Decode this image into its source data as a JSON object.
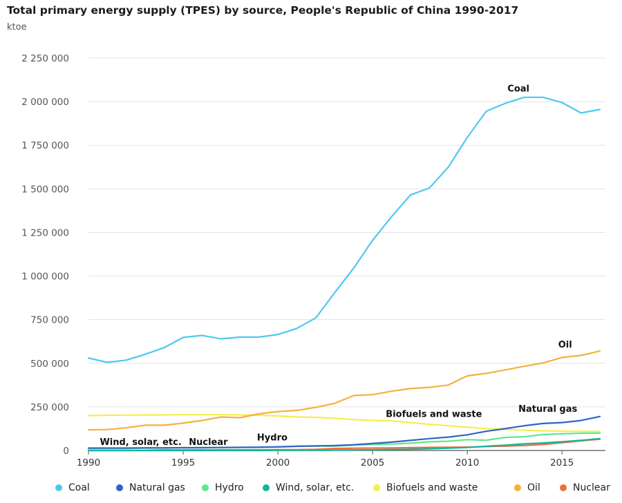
{
  "title": "Total primary energy supply (TPES) by source, People's Republic of China 1990-2017",
  "unit": "ktoe",
  "chart_data": {
    "type": "line",
    "x": [
      1990,
      1991,
      1992,
      1993,
      1994,
      1995,
      1996,
      1997,
      1998,
      1999,
      2000,
      2001,
      2002,
      2003,
      2004,
      2005,
      2006,
      2007,
      2008,
      2009,
      2010,
      2011,
      2012,
      2013,
      2014,
      2015,
      2016,
      2017
    ],
    "xlim": [
      1990,
      2017
    ],
    "ylim": [
      0,
      2250000
    ],
    "x_ticks": [
      {
        "value": 1990,
        "label": "1990"
      },
      {
        "value": 1995,
        "label": "1995"
      },
      {
        "value": 2000,
        "label": "2000"
      },
      {
        "value": 2005,
        "label": "2005"
      },
      {
        "value": 2010,
        "label": "2010"
      },
      {
        "value": 2015,
        "label": "2015"
      }
    ],
    "y_ticks": [
      {
        "value": 0,
        "label": "0"
      },
      {
        "value": 250000,
        "label": "250 000"
      },
      {
        "value": 500000,
        "label": "500 000"
      },
      {
        "value": 750000,
        "label": "750 000"
      },
      {
        "value": 1000000,
        "label": "1 000 000"
      },
      {
        "value": 1250000,
        "label": "1 250 000"
      },
      {
        "value": 1500000,
        "label": "1 500 000"
      },
      {
        "value": 1750000,
        "label": "1 750 000"
      },
      {
        "value": 2000000,
        "label": "2 000 000"
      },
      {
        "value": 2250000,
        "label": "2 250 000"
      }
    ],
    "grid": true,
    "legend_position": "bottom",
    "series": [
      {
        "name": "Coal",
        "color": "#4dc8f0",
        "values": [
          530000,
          505000,
          518000,
          552000,
          590000,
          648000,
          660000,
          640000,
          650000,
          650000,
          665000,
          700000,
          760000,
          905000,
          1045000,
          1205000,
          1340000,
          1465000,
          1505000,
          1625000,
          1795000,
          1945000,
          1990000,
          2025000,
          2025000,
          1995000,
          1935000,
          1955000
        ]
      },
      {
        "name": "Natural gas",
        "color": "#2f64c5",
        "values": [
          14000,
          14000,
          14000,
          15000,
          15000,
          16000,
          16000,
          17000,
          18000,
          19000,
          21000,
          24000,
          26000,
          28000,
          33000,
          40000,
          48000,
          58000,
          68000,
          77000,
          90000,
          110000,
          125000,
          142000,
          155000,
          160000,
          172000,
          195000
        ]
      },
      {
        "name": "Hydro",
        "color": "#5ee88c",
        "values": [
          11000,
          11000,
          11000,
          13000,
          14000,
          16000,
          16000,
          17000,
          18000,
          18000,
          19000,
          24000,
          25000,
          25000,
          31000,
          34000,
          37000,
          42000,
          50000,
          53000,
          62000,
          59000,
          75000,
          79000,
          91000,
          96000,
          99000,
          100000
        ]
      },
      {
        "name": "Wind, solar, etc.",
        "color": "#12b59b",
        "values": [
          0,
          0,
          0,
          0,
          0,
          0,
          0,
          0,
          0,
          0,
          1000,
          1000,
          1000,
          2000,
          3000,
          4000,
          5000,
          7000,
          10000,
          13000,
          17000,
          24000,
          30000,
          38000,
          43000,
          50000,
          58000,
          68000
        ]
      },
      {
        "name": "Biofuels and waste",
        "color": "#f5ee4e",
        "values": [
          200000,
          202000,
          203000,
          204000,
          204000,
          205000,
          205000,
          205000,
          204000,
          202000,
          198000,
          192000,
          190000,
          185000,
          178000,
          172000,
          170000,
          160000,
          150000,
          142000,
          133000,
          126000,
          121000,
          116000,
          113000,
          111000,
          110000,
          109000
        ]
      },
      {
        "name": "Oil",
        "color": "#f7b03a",
        "values": [
          118000,
          120000,
          130000,
          145000,
          145000,
          157000,
          172000,
          192000,
          188000,
          210000,
          223000,
          230000,
          247000,
          270000,
          315000,
          320000,
          340000,
          355000,
          362000,
          375000,
          428000,
          442000,
          462000,
          483000,
          502000,
          533000,
          545000,
          570000
        ]
      },
      {
        "name": "Nuclear",
        "color": "#ef6c3c",
        "values": [
          0,
          0,
          0,
          500,
          3600,
          3300,
          3700,
          3800,
          3700,
          3900,
          4300,
          4600,
          6500,
          11300,
          13200,
          13800,
          14300,
          16300,
          17900,
          18100,
          19300,
          22500,
          25400,
          28500,
          34500,
          44500,
          55400,
          64500
        ]
      }
    ],
    "annotations": [
      {
        "text": "Coal",
        "series": "Coal"
      },
      {
        "text": "Oil",
        "series": "Oil"
      },
      {
        "text": "Natural gas",
        "series": "Natural gas"
      },
      {
        "text": "Biofuels and waste",
        "series": "Biofuels and waste"
      },
      {
        "text": "Hydro",
        "series": "Hydro"
      },
      {
        "text": "Wind, solar, etc.",
        "series": "Wind, solar, etc."
      },
      {
        "text": "Nuclear",
        "series": "Nuclear"
      }
    ]
  },
  "legend": [
    {
      "label": "Coal",
      "color": "#4dc8f0"
    },
    {
      "label": "Natural gas",
      "color": "#2f64c5"
    },
    {
      "label": "Hydro",
      "color": "#5ee88c"
    },
    {
      "label": "Wind, solar, etc.",
      "color": "#12b59b"
    },
    {
      "label": "Biofuels and waste",
      "color": "#f5ee4e"
    },
    {
      "label": "Oil",
      "color": "#f7b03a"
    },
    {
      "label": "Nuclear",
      "color": "#ef6c3c"
    }
  ]
}
